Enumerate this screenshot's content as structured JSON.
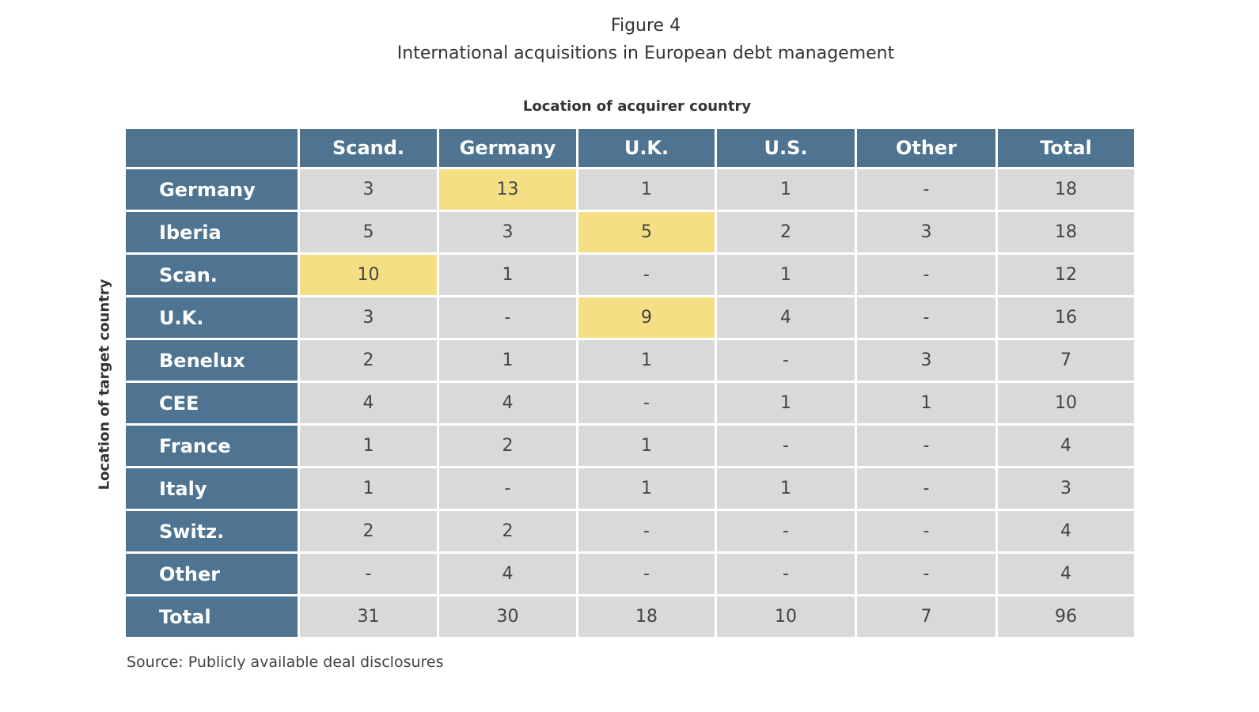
{
  "figure_number": "Figure 4",
  "title": "International acquisitions in European debt management",
  "source": "Source: Publicly available deal disclosures",
  "colors": {
    "header_bg": "#4e7491",
    "header_text": "#ffffff",
    "cell_bg": "#d9d9d9",
    "highlight_bg": "#f5df84"
  },
  "chart_data": {
    "type": "table",
    "title": "International acquisitions in European debt management",
    "column_axis_label": "Location of acquirer country",
    "row_axis_label": "Location of target country",
    "columns": [
      "Scand.",
      "Germany",
      "U.K.",
      "U.S.",
      "Other",
      "Total"
    ],
    "rows": [
      {
        "label": "Germany",
        "values": [
          "3",
          "13",
          "1",
          "1",
          "-",
          "18"
        ],
        "highlight": [
          1
        ]
      },
      {
        "label": "Iberia",
        "values": [
          "5",
          "3",
          "5",
          "2",
          "3",
          "18"
        ],
        "highlight": [
          2
        ]
      },
      {
        "label": "Scan.",
        "values": [
          "10",
          "1",
          "-",
          "1",
          "-",
          "12"
        ],
        "highlight": [
          0
        ]
      },
      {
        "label": "U.K.",
        "values": [
          "3",
          "-",
          "9",
          "4",
          "-",
          "16"
        ],
        "highlight": [
          2
        ]
      },
      {
        "label": "Benelux",
        "values": [
          "2",
          "1",
          "1",
          "-",
          "3",
          "7"
        ],
        "highlight": []
      },
      {
        "label": "CEE",
        "values": [
          "4",
          "4",
          "-",
          "1",
          "1",
          "10"
        ],
        "highlight": []
      },
      {
        "label": "France",
        "values": [
          "1",
          "2",
          "1",
          "-",
          "-",
          "4"
        ],
        "highlight": []
      },
      {
        "label": "Italy",
        "values": [
          "1",
          "-",
          "1",
          "1",
          "-",
          "3"
        ],
        "highlight": []
      },
      {
        "label": "Switz.",
        "values": [
          "2",
          "2",
          "-",
          "-",
          "-",
          "4"
        ],
        "highlight": []
      },
      {
        "label": "Other",
        "values": [
          "-",
          "4",
          "-",
          "-",
          "-",
          "4"
        ],
        "highlight": []
      },
      {
        "label": "Total",
        "values": [
          "31",
          "30",
          "18",
          "10",
          "7",
          "96"
        ],
        "highlight": []
      }
    ]
  }
}
